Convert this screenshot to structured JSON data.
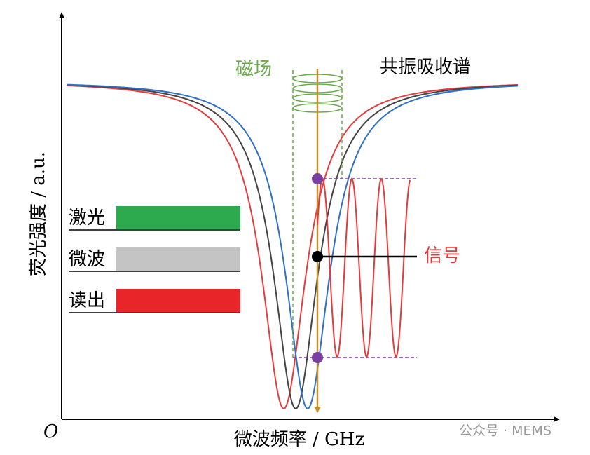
{
  "labels": {
    "field": "磁场",
    "spectrum": "共振吸收谱",
    "laser": "激光",
    "microwave": "微波",
    "readout": "读出",
    "signal": "信号",
    "origin": "O"
  },
  "axes": {
    "y_label": "荧光强度 / a.u.",
    "x_label": "微波频率 / GHz"
  },
  "watermark": "公众号 · MEMS"
}
